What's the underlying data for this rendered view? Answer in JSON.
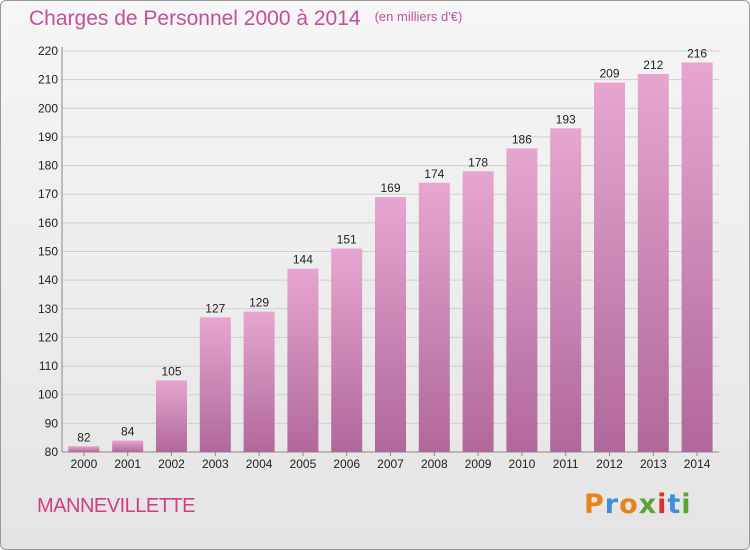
{
  "title": "Charges de Personnel 2000 à 2014",
  "subtitle": "(en milliers d'€)",
  "town": "MANNEVILLETTE",
  "logo": {
    "letters": [
      "P",
      "r",
      "o",
      "x",
      "i",
      "t",
      "i"
    ],
    "colors": [
      "#e8821d",
      "#3d8fd6",
      "#e8821d",
      "#5aa532",
      "#d8312a",
      "#3d8fd6",
      "#5aa532"
    ]
  },
  "colors": {
    "bar_top": "#e6a6cf",
    "bar_bottom": "#b0689a",
    "title": "#c0509a",
    "town": "#d33d84"
  },
  "chart_data": {
    "type": "bar",
    "categories": [
      "2000",
      "2001",
      "2002",
      "2003",
      "2004",
      "2005",
      "2006",
      "2007",
      "2008",
      "2009",
      "2010",
      "2011",
      "2012",
      "2013",
      "2014"
    ],
    "values": [
      82,
      84,
      105,
      127,
      129,
      144,
      151,
      169,
      174,
      178,
      186,
      193,
      209,
      212,
      216
    ],
    "ylim": [
      80,
      220
    ],
    "yticks": [
      80,
      90,
      100,
      110,
      120,
      130,
      140,
      150,
      160,
      170,
      180,
      190,
      200,
      210,
      220
    ],
    "grid": true,
    "xlabel": "",
    "ylabel": ""
  }
}
